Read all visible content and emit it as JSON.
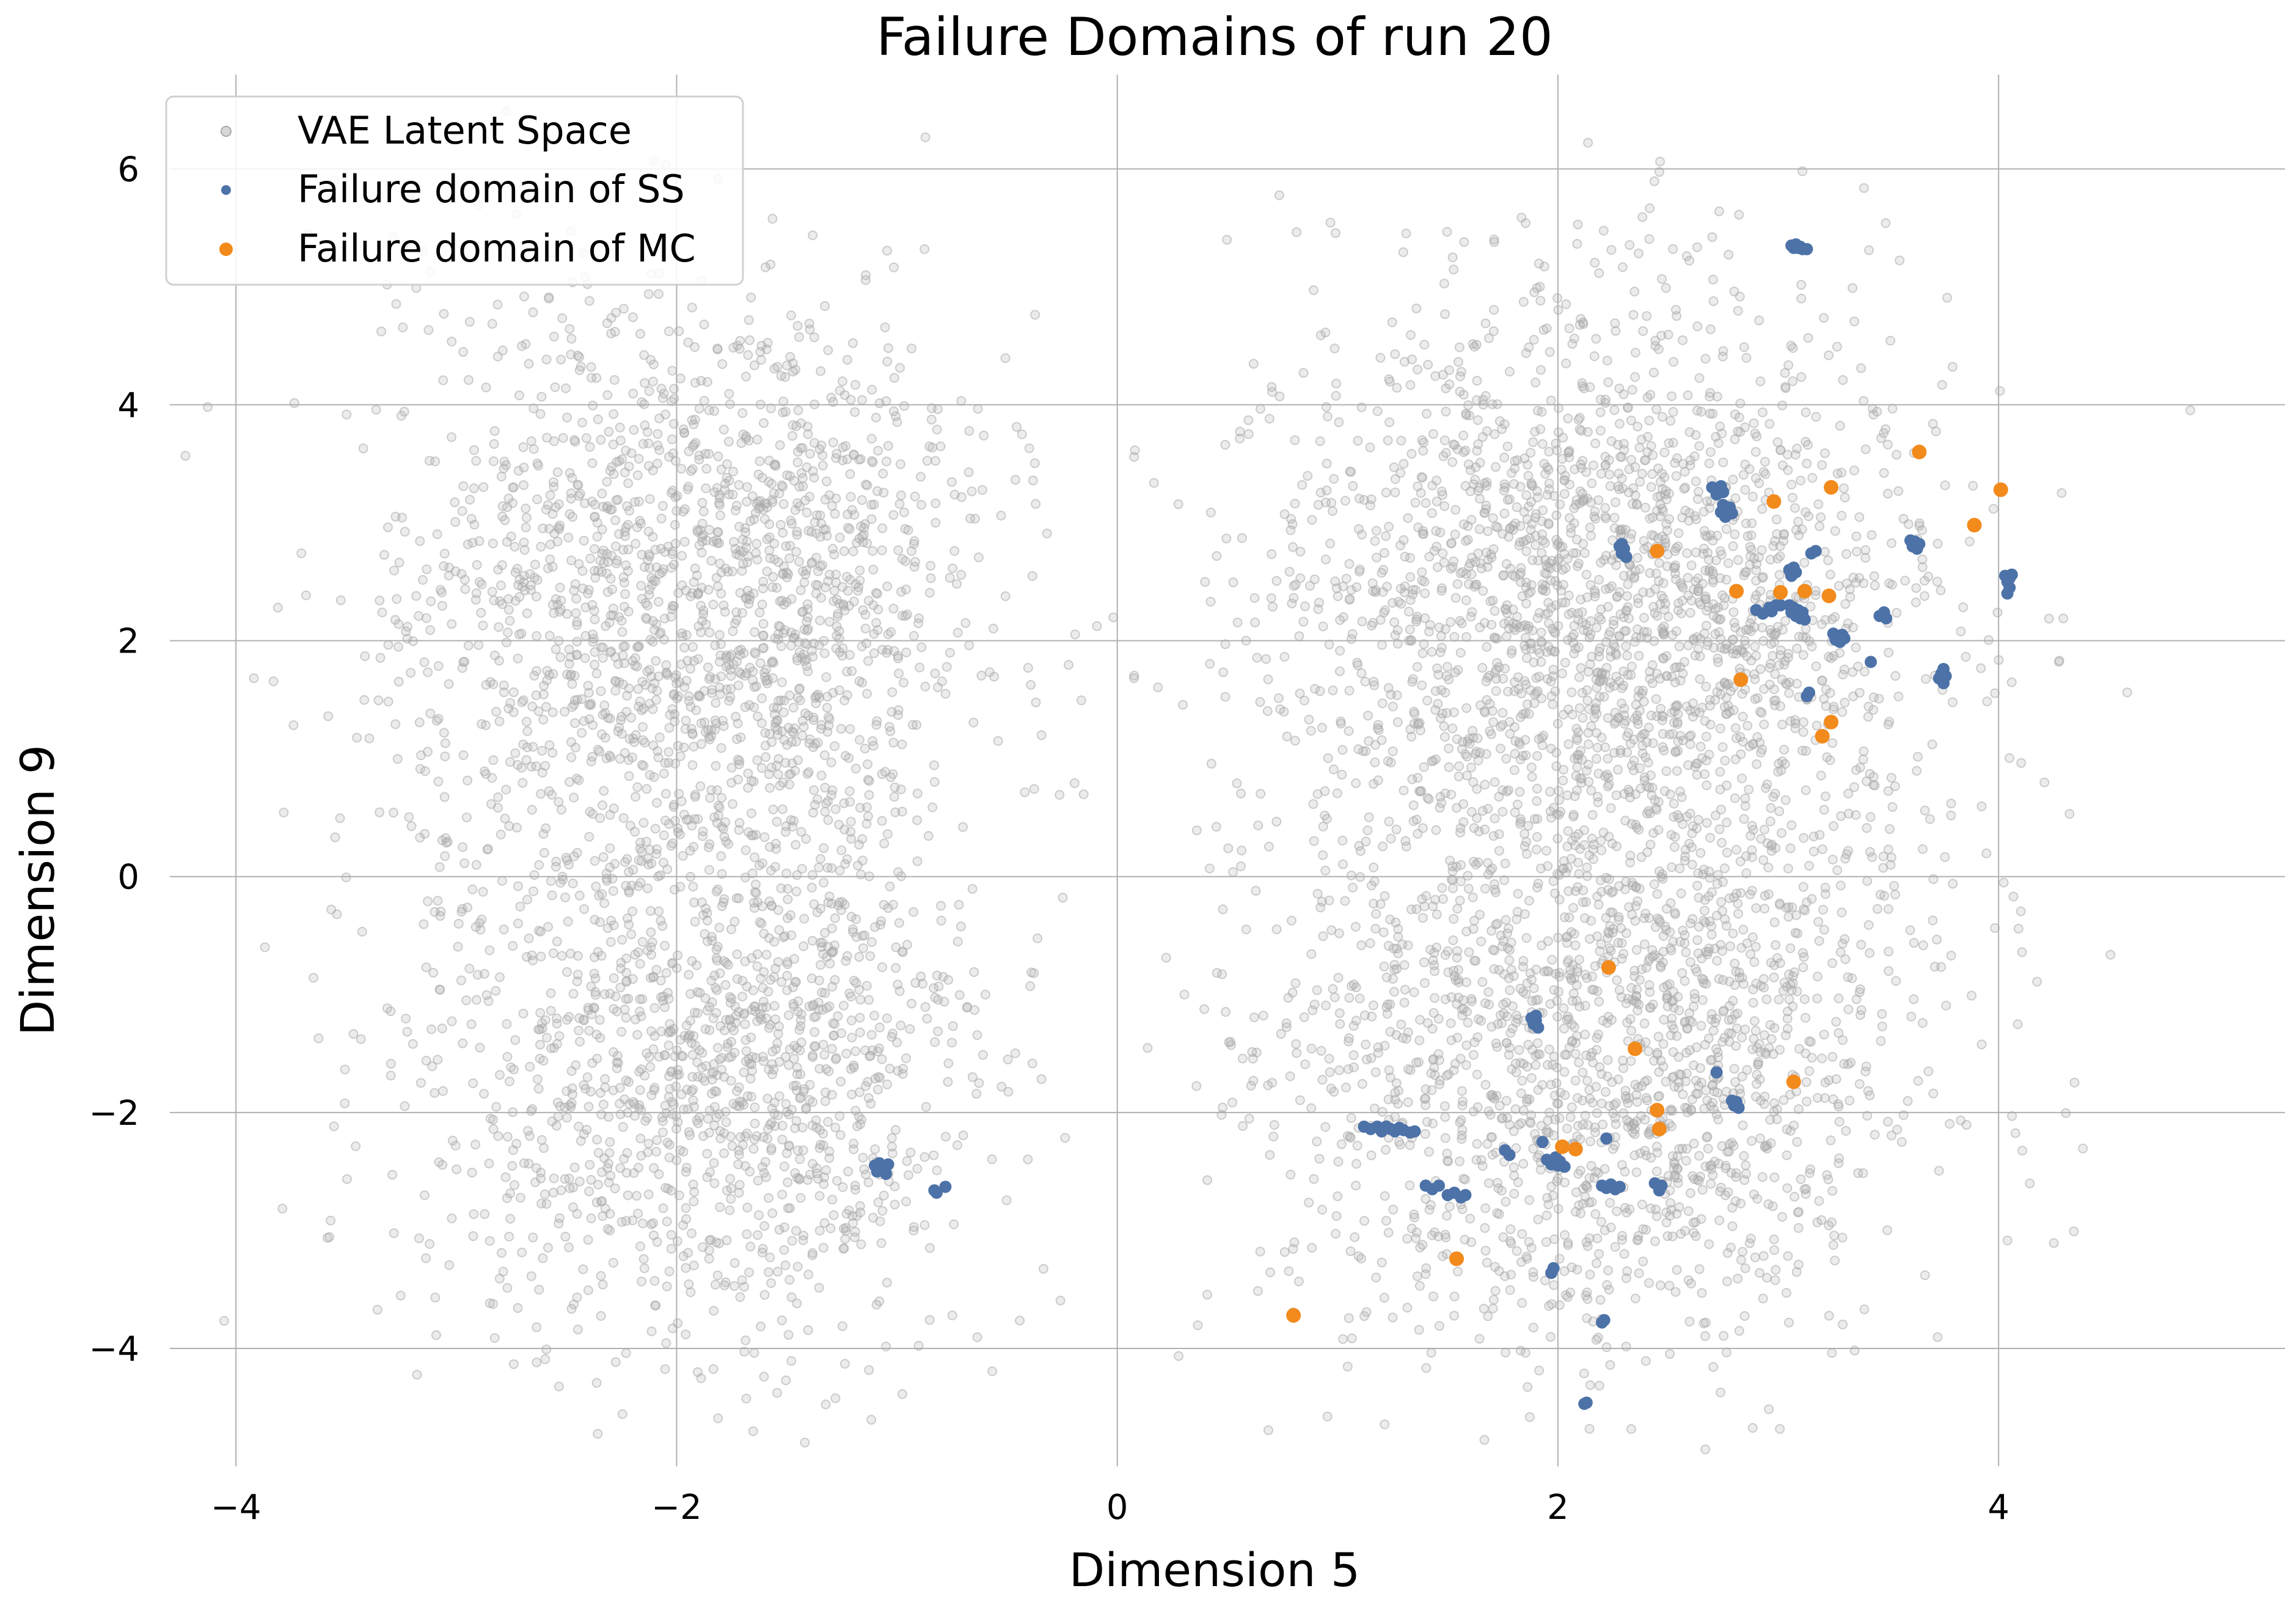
{
  "chart_data": {
    "type": "scatter",
    "title": "Failure Domains of run 20",
    "xlabel": "Dimension 5",
    "ylabel": "Dimension 9",
    "xlim": [
      -4.3,
      5.3
    ],
    "ylim": [
      -5.0,
      6.8
    ],
    "xticks": [
      -4,
      -2,
      0,
      2,
      4
    ],
    "yticks": [
      -4,
      -2,
      0,
      2,
      4,
      6
    ],
    "xtick_labels": [
      "−4",
      "−2",
      "0",
      "2",
      "4"
    ],
    "ytick_labels": [
      "−4",
      "−2",
      "0",
      "2",
      "4",
      "6"
    ],
    "grid": true,
    "legend_position": "top-left",
    "series": [
      {
        "name": "VAE Latent Space",
        "color": "#a9a9a9",
        "clusters": [
          {
            "cx": -2.4,
            "cy": 2.2,
            "sx": 0.55,
            "sy": 1.5,
            "n": 900
          },
          {
            "cx": -1.5,
            "cy": 2.3,
            "sx": 0.45,
            "sy": 1.2,
            "n": 900
          },
          {
            "cx": -2.2,
            "cy": -1.7,
            "sx": 0.6,
            "sy": 1.2,
            "n": 650
          },
          {
            "cx": -1.5,
            "cy": -1.6,
            "sx": 0.45,
            "sy": 1.1,
            "n": 650
          },
          {
            "cx": 1.8,
            "cy": 2.2,
            "sx": 0.65,
            "sy": 1.3,
            "n": 1100
          },
          {
            "cx": 2.6,
            "cy": 2.3,
            "sx": 0.6,
            "sy": 1.3,
            "n": 1100
          },
          {
            "cx": 1.8,
            "cy": -1.6,
            "sx": 0.65,
            "sy": 1.2,
            "n": 850
          },
          {
            "cx": 2.6,
            "cy": -1.5,
            "sx": 0.6,
            "sy": 1.2,
            "n": 850
          }
        ]
      },
      {
        "name": "Failure domain of SS",
        "color": "#4c72a8",
        "points": [
          [
            3.06,
            5.35
          ],
          [
            3.07,
            5.33
          ],
          [
            3.08,
            5.36
          ],
          [
            3.09,
            5.33
          ],
          [
            3.1,
            5.34
          ],
          [
            3.11,
            5.32
          ],
          [
            3.13,
            5.32
          ],
          [
            2.7,
            3.3
          ],
          [
            2.72,
            3.27
          ],
          [
            2.74,
            3.31
          ],
          [
            2.75,
            3.26
          ],
          [
            2.72,
            3.24
          ],
          [
            2.75,
            3.15
          ],
          [
            2.76,
            3.1
          ],
          [
            2.78,
            3.13
          ],
          [
            2.79,
            3.08
          ],
          [
            2.74,
            3.09
          ],
          [
            2.76,
            3.05
          ],
          [
            2.28,
            2.8
          ],
          [
            2.29,
            2.74
          ],
          [
            2.3,
            2.78
          ],
          [
            2.31,
            2.71
          ],
          [
            2.29,
            2.82
          ],
          [
            3.15,
            2.74
          ],
          [
            3.17,
            2.76
          ],
          [
            3.05,
            2.6
          ],
          [
            3.06,
            2.55
          ],
          [
            3.07,
            2.62
          ],
          [
            3.08,
            2.58
          ],
          [
            3.6,
            2.85
          ],
          [
            3.61,
            2.8
          ],
          [
            3.62,
            2.84
          ],
          [
            3.63,
            2.78
          ],
          [
            3.64,
            2.82
          ],
          [
            4.03,
            2.55
          ],
          [
            4.04,
            2.5
          ],
          [
            4.05,
            2.53
          ],
          [
            4.06,
            2.56
          ],
          [
            4.05,
            2.45
          ],
          [
            4.04,
            2.4
          ],
          [
            2.9,
            2.26
          ],
          [
            2.93,
            2.23
          ],
          [
            2.96,
            2.28
          ],
          [
            2.99,
            2.3
          ],
          [
            2.97,
            2.25
          ],
          [
            3.01,
            2.3
          ],
          [
            3.05,
            2.3
          ],
          [
            3.06,
            2.24
          ],
          [
            3.07,
            2.28
          ],
          [
            3.08,
            2.21
          ],
          [
            3.09,
            2.26
          ],
          [
            3.1,
            2.19
          ],
          [
            3.11,
            2.24
          ],
          [
            3.12,
            2.18
          ],
          [
            3.25,
            2.06
          ],
          [
            3.26,
            2.01
          ],
          [
            3.27,
            2.04
          ],
          [
            3.28,
            1.99
          ],
          [
            3.29,
            2.05
          ],
          [
            3.3,
            2.02
          ],
          [
            3.46,
            2.21
          ],
          [
            3.48,
            2.24
          ],
          [
            3.49,
            2.19
          ],
          [
            3.42,
            1.82
          ],
          [
            3.73,
            1.68
          ],
          [
            3.74,
            1.72
          ],
          [
            3.75,
            1.64
          ],
          [
            3.76,
            1.7
          ],
          [
            3.75,
            1.76
          ],
          [
            3.13,
            1.53
          ],
          [
            3.14,
            1.56
          ],
          [
            -1.1,
            -2.45
          ],
          [
            -1.09,
            -2.5
          ],
          [
            -1.08,
            -2.43
          ],
          [
            -1.07,
            -2.48
          ],
          [
            -1.06,
            -2.46
          ],
          [
            -1.05,
            -2.52
          ],
          [
            -1.04,
            -2.44
          ],
          [
            -0.83,
            -2.66
          ],
          [
            -0.82,
            -2.68
          ],
          [
            -0.78,
            -2.63
          ],
          [
            1.12,
            -2.12
          ],
          [
            1.15,
            -2.14
          ],
          [
            1.18,
            -2.12
          ],
          [
            1.2,
            -2.16
          ],
          [
            1.22,
            -2.12
          ],
          [
            1.24,
            -2.14
          ],
          [
            1.26,
            -2.16
          ],
          [
            1.28,
            -2.13
          ],
          [
            1.3,
            -2.15
          ],
          [
            1.33,
            -2.17
          ],
          [
            1.35,
            -2.16
          ],
          [
            1.88,
            -1.2
          ],
          [
            1.89,
            -1.25
          ],
          [
            1.9,
            -1.22
          ],
          [
            1.91,
            -1.28
          ],
          [
            1.9,
            -1.18
          ],
          [
            2.72,
            -1.66
          ],
          [
            2.79,
            -1.9
          ],
          [
            2.8,
            -1.94
          ],
          [
            2.81,
            -1.91
          ],
          [
            2.82,
            -1.96
          ],
          [
            1.76,
            -2.32
          ],
          [
            1.78,
            -2.36
          ],
          [
            1.93,
            -2.25
          ],
          [
            1.95,
            -2.4
          ],
          [
            1.97,
            -2.44
          ],
          [
            1.98,
            -2.41
          ],
          [
            2.0,
            -2.45
          ],
          [
            2.01,
            -2.42
          ],
          [
            2.03,
            -2.46
          ],
          [
            1.99,
            -2.38
          ],
          [
            2.22,
            -2.22
          ],
          [
            2.2,
            -2.62
          ],
          [
            2.22,
            -2.64
          ],
          [
            2.24,
            -2.61
          ],
          [
            2.26,
            -2.65
          ],
          [
            2.28,
            -2.63
          ],
          [
            2.44,
            -2.6
          ],
          [
            2.46,
            -2.66
          ],
          [
            2.47,
            -2.62
          ],
          [
            1.4,
            -2.62
          ],
          [
            1.43,
            -2.65
          ],
          [
            1.46,
            -2.62
          ],
          [
            1.5,
            -2.7
          ],
          [
            1.53,
            -2.68
          ],
          [
            1.56,
            -2.72
          ],
          [
            1.58,
            -2.7
          ],
          [
            1.97,
            -3.36
          ],
          [
            1.98,
            -3.32
          ],
          [
            2.2,
            -3.78
          ],
          [
            2.21,
            -3.76
          ],
          [
            2.12,
            -4.47
          ],
          [
            2.13,
            -4.46
          ]
        ]
      },
      {
        "name": "Failure domain of MC",
        "color": "#f28a1c",
        "points": [
          [
            3.64,
            3.6
          ],
          [
            4.01,
            3.28
          ],
          [
            3.24,
            3.3
          ],
          [
            2.98,
            3.18
          ],
          [
            3.89,
            2.98
          ],
          [
            2.45,
            2.76
          ],
          [
            2.81,
            2.42
          ],
          [
            3.01,
            2.41
          ],
          [
            3.12,
            2.42
          ],
          [
            3.23,
            2.38
          ],
          [
            2.83,
            1.67
          ],
          [
            3.24,
            1.31
          ],
          [
            3.2,
            1.19
          ],
          [
            2.23,
            -0.77
          ],
          [
            2.35,
            -1.46
          ],
          [
            3.07,
            -1.74
          ],
          [
            2.45,
            -1.98
          ],
          [
            2.46,
            -2.14
          ],
          [
            2.02,
            -2.29
          ],
          [
            2.08,
            -2.31
          ],
          [
            1.54,
            -3.24
          ],
          [
            0.8,
            -3.72
          ]
        ]
      }
    ]
  }
}
